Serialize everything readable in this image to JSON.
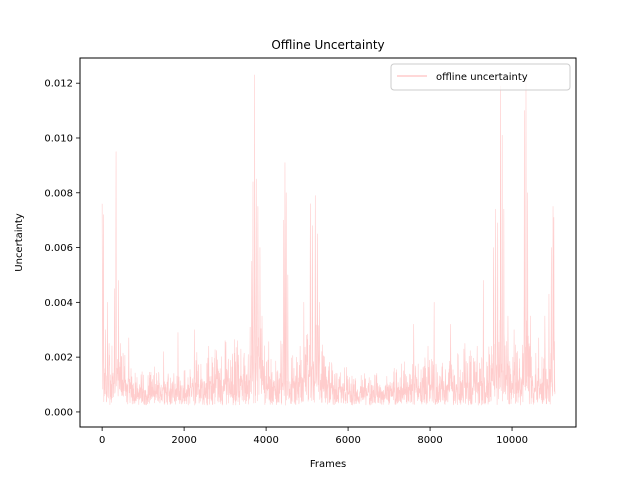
{
  "chart_data": {
    "type": "line",
    "title": "Offline Uncertainty",
    "xlabel": "Frames",
    "ylabel": "Uncertainty",
    "xlim": [
      -540,
      11560
    ],
    "ylim": [
      -0.00055,
      0.01292
    ],
    "xticks": [
      0,
      2000,
      4000,
      6000,
      8000,
      10000
    ],
    "yticks": [
      0.0,
      0.002,
      0.004,
      0.006,
      0.008,
      0.01,
      0.012
    ],
    "ytick_labels": [
      "0.000",
      "0.002",
      "0.004",
      "0.006",
      "0.008",
      "0.010",
      "0.012"
    ],
    "grid": false,
    "legend_position": "upper right",
    "series": [
      {
        "name": "offline uncertainty",
        "color": "#ffcccc",
        "anchors_x": [
          0,
          60,
          200,
          400,
          600,
          800,
          1200,
          1600,
          2000,
          2400,
          2800,
          3200,
          3500,
          3650,
          3750,
          3850,
          3950,
          4200,
          4450,
          4600,
          4800,
          5000,
          5150,
          5350,
          5600,
          6000,
          6400,
          6800,
          7200,
          7600,
          8000,
          8400,
          8800,
          9200,
          9500,
          9650,
          9800,
          10000,
          10200,
          10350,
          10500,
          10700,
          10900,
          11050
        ],
        "anchors_base": [
          0.0006,
          0.0012,
          0.001,
          0.0012,
          0.0009,
          0.0006,
          0.0006,
          0.0006,
          0.0007,
          0.0008,
          0.0009,
          0.001,
          0.001,
          0.0012,
          0.002,
          0.0016,
          0.001,
          0.0009,
          0.0012,
          0.0008,
          0.0009,
          0.0011,
          0.0014,
          0.001,
          0.0007,
          0.0006,
          0.0005,
          0.0005,
          0.0006,
          0.0007,
          0.0008,
          0.0008,
          0.0008,
          0.0009,
          0.001,
          0.0014,
          0.0012,
          0.0008,
          0.0009,
          0.0014,
          0.0008,
          0.0008,
          0.0009,
          0.001
        ],
        "anchors_amp": [
          0.0012,
          0.0016,
          0.0014,
          0.0016,
          0.0012,
          0.0008,
          0.0008,
          0.0009,
          0.001,
          0.0012,
          0.0013,
          0.0014,
          0.0015,
          0.0018,
          0.0035,
          0.0025,
          0.0014,
          0.0012,
          0.0018,
          0.0012,
          0.0013,
          0.0016,
          0.0022,
          0.0015,
          0.001,
          0.0008,
          0.0007,
          0.0007,
          0.0008,
          0.001,
          0.0012,
          0.0012,
          0.0012,
          0.0014,
          0.0016,
          0.0022,
          0.0018,
          0.0012,
          0.0014,
          0.0022,
          0.0012,
          0.0012,
          0.0014,
          0.0016
        ],
        "spikes": [
          [
            0,
            0.0076
          ],
          [
            30,
            0.0072
          ],
          [
            80,
            0.003
          ],
          [
            130,
            0.004
          ],
          [
            170,
            0.0025
          ],
          [
            300,
            0.0045
          ],
          [
            340,
            0.0095
          ],
          [
            400,
            0.0048
          ],
          [
            450,
            0.0025
          ],
          [
            650,
            0.0027
          ],
          [
            1500,
            0.0022
          ],
          [
            1850,
            0.0029
          ],
          [
            2250,
            0.003
          ],
          [
            2600,
            0.0024
          ],
          [
            3000,
            0.0026
          ],
          [
            3300,
            0.0026
          ],
          [
            3650,
            0.0055
          ],
          [
            3680,
            0.0084
          ],
          [
            3720,
            0.0123
          ],
          [
            3760,
            0.0085
          ],
          [
            3800,
            0.0075
          ],
          [
            3850,
            0.006
          ],
          [
            3900,
            0.0035
          ],
          [
            4430,
            0.007
          ],
          [
            4460,
            0.0091
          ],
          [
            4490,
            0.008
          ],
          [
            4530,
            0.005
          ],
          [
            4920,
            0.004
          ],
          [
            5080,
            0.0076
          ],
          [
            5130,
            0.0068
          ],
          [
            5200,
            0.0079
          ],
          [
            5250,
            0.0065
          ],
          [
            5300,
            0.004
          ],
          [
            5600,
            0.0018
          ],
          [
            6400,
            0.0014
          ],
          [
            7350,
            0.0015
          ],
          [
            7600,
            0.0032
          ],
          [
            7950,
            0.0024
          ],
          [
            8100,
            0.004
          ],
          [
            8500,
            0.0032
          ],
          [
            8850,
            0.0025
          ],
          [
            9150,
            0.0024
          ],
          [
            9300,
            0.0048
          ],
          [
            9550,
            0.006
          ],
          [
            9600,
            0.0074
          ],
          [
            9650,
            0.0069
          ],
          [
            9720,
            0.0119
          ],
          [
            9760,
            0.0101
          ],
          [
            9800,
            0.0074
          ],
          [
            9900,
            0.0035
          ],
          [
            10050,
            0.003
          ],
          [
            10300,
            0.011
          ],
          [
            10340,
            0.0121
          ],
          [
            10380,
            0.008
          ],
          [
            10450,
            0.0035
          ],
          [
            10650,
            0.0027
          ],
          [
            10800,
            0.0035
          ],
          [
            10900,
            0.0043
          ],
          [
            10960,
            0.006
          ],
          [
            11000,
            0.0075
          ],
          [
            11020,
            0.0071
          ]
        ]
      }
    ]
  }
}
